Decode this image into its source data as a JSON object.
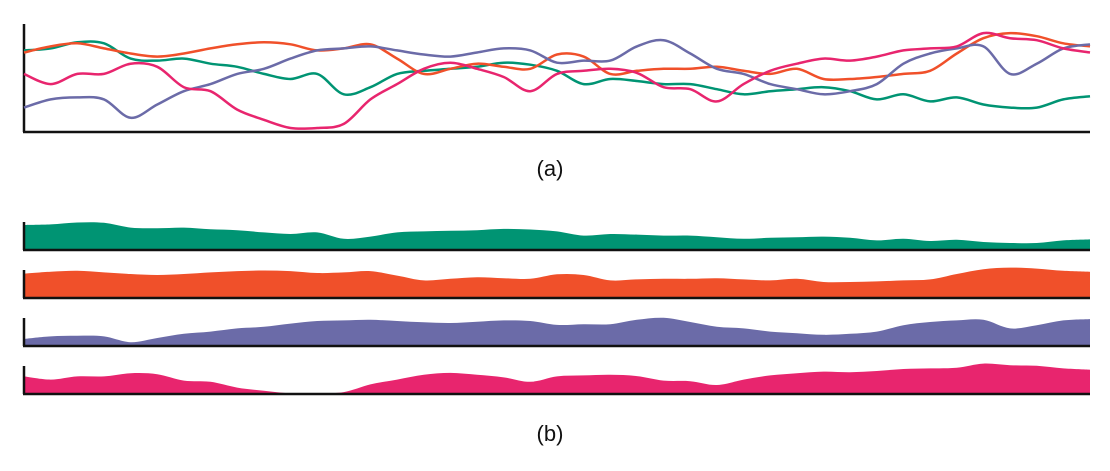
{
  "captions": {
    "a": "(a)",
    "b": "(b)"
  },
  "chart_data": [
    {
      "type": "line",
      "panel": "a",
      "ylim": [
        0,
        1
      ],
      "grid": false,
      "x": [
        0,
        1,
        2,
        3,
        4,
        5,
        6,
        7,
        8,
        9,
        10,
        11,
        12,
        13,
        14,
        15,
        16,
        17,
        18,
        19,
        20,
        21,
        22,
        23,
        24,
        25,
        26,
        27,
        28,
        29,
        30,
        31,
        32,
        33,
        34,
        35,
        36,
        37,
        38,
        39,
        40
      ],
      "series": [
        {
          "color": "#009473",
          "values": [
            0.78,
            0.8,
            0.86,
            0.85,
            0.7,
            0.68,
            0.7,
            0.65,
            0.62,
            0.55,
            0.5,
            0.55,
            0.35,
            0.42,
            0.55,
            0.58,
            0.6,
            0.62,
            0.66,
            0.64,
            0.58,
            0.45,
            0.5,
            0.48,
            0.45,
            0.45,
            0.4,
            0.35,
            0.38,
            0.4,
            0.42,
            0.38,
            0.3,
            0.35,
            0.28,
            0.32,
            0.25,
            0.22,
            0.22,
            0.3,
            0.33
          ]
        },
        {
          "color": "#F0502A",
          "values": [
            0.76,
            0.82,
            0.85,
            0.8,
            0.75,
            0.72,
            0.75,
            0.8,
            0.84,
            0.86,
            0.84,
            0.78,
            0.8,
            0.84,
            0.7,
            0.55,
            0.6,
            0.65,
            0.62,
            0.6,
            0.74,
            0.72,
            0.55,
            0.58,
            0.6,
            0.6,
            0.62,
            0.58,
            0.55,
            0.6,
            0.5,
            0.5,
            0.52,
            0.55,
            0.58,
            0.75,
            0.9,
            0.95,
            0.92,
            0.85,
            0.82
          ]
        },
        {
          "color": "#6B6BA8",
          "values": [
            0.22,
            0.3,
            0.32,
            0.3,
            0.12,
            0.25,
            0.38,
            0.45,
            0.55,
            0.6,
            0.7,
            0.78,
            0.8,
            0.82,
            0.78,
            0.74,
            0.72,
            0.76,
            0.8,
            0.78,
            0.66,
            0.68,
            0.68,
            0.82,
            0.88,
            0.75,
            0.6,
            0.55,
            0.45,
            0.4,
            0.35,
            0.38,
            0.45,
            0.65,
            0.75,
            0.8,
            0.82,
            0.55,
            0.65,
            0.8,
            0.84
          ]
        },
        {
          "color": "#E8256E",
          "values": [
            0.55,
            0.45,
            0.55,
            0.55,
            0.65,
            0.62,
            0.42,
            0.38,
            0.2,
            0.1,
            0.02,
            0.02,
            0.06,
            0.3,
            0.45,
            0.6,
            0.66,
            0.6,
            0.52,
            0.38,
            0.55,
            0.58,
            0.6,
            0.56,
            0.42,
            0.4,
            0.28,
            0.45,
            0.58,
            0.65,
            0.7,
            0.68,
            0.72,
            0.78,
            0.8,
            0.82,
            0.95,
            0.9,
            0.88,
            0.8,
            0.76
          ]
        }
      ]
    },
    {
      "type": "area",
      "panel": "b",
      "ylim": [
        0,
        1
      ],
      "grid": false,
      "x": [
        0,
        1,
        2,
        3,
        4,
        5,
        6,
        7,
        8,
        9,
        10,
        11,
        12,
        13,
        14,
        15,
        16,
        17,
        18,
        19,
        20,
        21,
        22,
        23,
        24,
        25,
        26,
        27,
        28,
        29,
        30,
        31,
        32,
        33,
        34,
        35,
        36,
        37,
        38,
        39,
        40
      ],
      "series": [
        {
          "color": "#009473",
          "values": [
            0.78,
            0.8,
            0.86,
            0.85,
            0.7,
            0.68,
            0.7,
            0.65,
            0.62,
            0.55,
            0.5,
            0.55,
            0.35,
            0.42,
            0.55,
            0.58,
            0.6,
            0.62,
            0.66,
            0.64,
            0.58,
            0.45,
            0.5,
            0.48,
            0.45,
            0.45,
            0.4,
            0.35,
            0.38,
            0.4,
            0.42,
            0.38,
            0.3,
            0.35,
            0.28,
            0.32,
            0.25,
            0.22,
            0.22,
            0.3,
            0.33
          ]
        },
        {
          "color": "#F0502A",
          "values": [
            0.76,
            0.82,
            0.85,
            0.8,
            0.75,
            0.72,
            0.75,
            0.8,
            0.84,
            0.86,
            0.84,
            0.78,
            0.8,
            0.84,
            0.7,
            0.55,
            0.6,
            0.65,
            0.62,
            0.6,
            0.74,
            0.72,
            0.55,
            0.58,
            0.6,
            0.6,
            0.62,
            0.58,
            0.55,
            0.6,
            0.5,
            0.5,
            0.52,
            0.55,
            0.58,
            0.75,
            0.9,
            0.95,
            0.92,
            0.85,
            0.82
          ]
        },
        {
          "color": "#6B6BA8",
          "values": [
            0.22,
            0.3,
            0.32,
            0.3,
            0.12,
            0.25,
            0.38,
            0.45,
            0.55,
            0.6,
            0.7,
            0.78,
            0.8,
            0.82,
            0.78,
            0.74,
            0.72,
            0.76,
            0.8,
            0.78,
            0.66,
            0.68,
            0.68,
            0.82,
            0.88,
            0.75,
            0.6,
            0.55,
            0.45,
            0.4,
            0.35,
            0.38,
            0.45,
            0.65,
            0.75,
            0.8,
            0.82,
            0.55,
            0.65,
            0.8,
            0.84
          ]
        },
        {
          "color": "#E8256E",
          "values": [
            0.55,
            0.45,
            0.55,
            0.55,
            0.65,
            0.62,
            0.42,
            0.38,
            0.2,
            0.1,
            0.02,
            0.02,
            0.06,
            0.3,
            0.45,
            0.6,
            0.66,
            0.6,
            0.52,
            0.38,
            0.55,
            0.58,
            0.6,
            0.56,
            0.42,
            0.4,
            0.28,
            0.45,
            0.58,
            0.65,
            0.7,
            0.68,
            0.72,
            0.78,
            0.8,
            0.82,
            0.95,
            0.9,
            0.88,
            0.8,
            0.76
          ]
        }
      ]
    }
  ]
}
